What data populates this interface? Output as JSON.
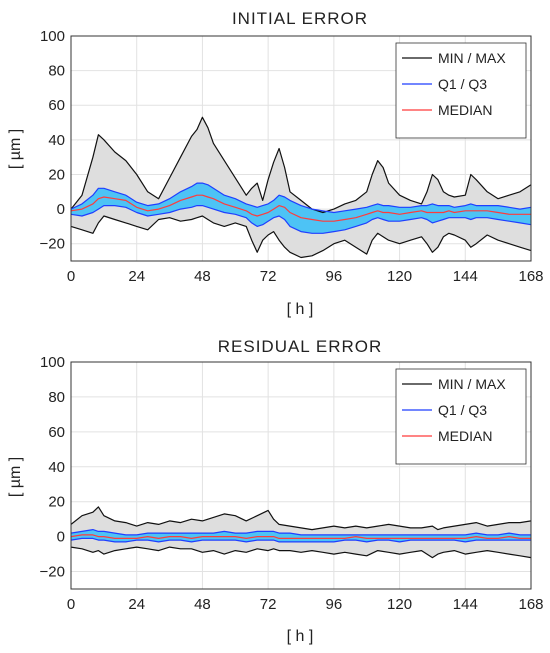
{
  "chart_data": [
    {
      "type": "area",
      "title": "INITIAL ERROR",
      "xlabel": "[ h ]",
      "ylabel": "[ µm ]",
      "xlim": [
        0,
        168
      ],
      "ylim": [
        -30,
        100
      ],
      "xticks": [
        0,
        24,
        48,
        72,
        96,
        120,
        144,
        168
      ],
      "yticks": [
        -20,
        0,
        20,
        40,
        60,
        80,
        100
      ],
      "xtick_labels": [
        "0",
        "24",
        "48",
        "72",
        "96",
        "120",
        "144",
        "168"
      ],
      "ytick_labels": [
        "−20",
        "0",
        "20",
        "40",
        "60",
        "80",
        "100"
      ],
      "grid": true,
      "legend_position": "top-right",
      "x": [
        0,
        4,
        8,
        10,
        12,
        16,
        20,
        24,
        28,
        32,
        36,
        40,
        44,
        46,
        48,
        50,
        52,
        56,
        60,
        64,
        66,
        68,
        70,
        72,
        74,
        76,
        78,
        80,
        84,
        88,
        92,
        96,
        100,
        104,
        108,
        110,
        112,
        114,
        116,
        120,
        124,
        128,
        130,
        132,
        134,
        136,
        138,
        140,
        144,
        146,
        148,
        152,
        156,
        160,
        164,
        168
      ],
      "series": [
        {
          "name": "MIN / MAX",
          "role": "max",
          "color": "#111111",
          "values": [
            0,
            8,
            30,
            43,
            40,
            33,
            28,
            20,
            10,
            6,
            18,
            30,
            42,
            46,
            53,
            47,
            38,
            28,
            18,
            8,
            12,
            15,
            5,
            17,
            27,
            35,
            24,
            10,
            5,
            0,
            -2,
            0,
            3,
            5,
            10,
            20,
            28,
            24,
            15,
            8,
            5,
            3,
            10,
            20,
            17,
            10,
            8,
            7,
            8,
            20,
            17,
            10,
            6,
            8,
            10,
            14
          ]
        },
        {
          "name": "",
          "role": "min",
          "color": "#111111",
          "values": [
            -10,
            -12,
            -14,
            -8,
            -4,
            -6,
            -8,
            -10,
            -12,
            -6,
            -5,
            -7,
            -6,
            -5,
            -4,
            -6,
            -8,
            -10,
            -8,
            -10,
            -18,
            -25,
            -18,
            -15,
            -13,
            -18,
            -22,
            -25,
            -28,
            -27,
            -24,
            -20,
            -18,
            -22,
            -26,
            -18,
            -14,
            -16,
            -18,
            -20,
            -18,
            -16,
            -20,
            -25,
            -22,
            -16,
            -14,
            -15,
            -18,
            -22,
            -20,
            -15,
            -18,
            -20,
            -22,
            -24
          ]
        },
        {
          "name": "Q1 / Q3",
          "role": "q3",
          "color": "#1f3fff",
          "values": [
            0,
            3,
            8,
            12,
            12,
            10,
            8,
            4,
            2,
            3,
            6,
            10,
            13,
            15,
            15,
            14,
            12,
            8,
            6,
            3,
            2,
            1,
            2,
            3,
            5,
            8,
            7,
            5,
            2,
            0,
            -1,
            -2,
            -1,
            0,
            1,
            2,
            3,
            2,
            2,
            1,
            1,
            2,
            2,
            3,
            2,
            2,
            2,
            1,
            2,
            3,
            2,
            2,
            2,
            1,
            0,
            1
          ]
        },
        {
          "name": "",
          "role": "q1",
          "color": "#1f3fff",
          "values": [
            -3,
            -4,
            -2,
            0,
            2,
            2,
            1,
            -2,
            -4,
            -3,
            -2,
            0,
            1,
            2,
            2,
            1,
            0,
            -2,
            -3,
            -5,
            -8,
            -10,
            -9,
            -7,
            -5,
            -4,
            -6,
            -10,
            -13,
            -14,
            -14,
            -13,
            -12,
            -10,
            -8,
            -6,
            -5,
            -6,
            -7,
            -7,
            -6,
            -5,
            -6,
            -8,
            -7,
            -6,
            -5,
            -5,
            -5,
            -6,
            -5,
            -5,
            -6,
            -7,
            -8,
            -9
          ]
        },
        {
          "name": "MEDIAN",
          "role": "median",
          "color": "#ff3b3b",
          "values": [
            -1,
            0,
            3,
            6,
            7,
            6,
            5,
            1,
            -1,
            0,
            2,
            5,
            7,
            8,
            8,
            7,
            6,
            3,
            1,
            -1,
            -3,
            -4,
            -3,
            -2,
            0,
            2,
            1,
            -2,
            -5,
            -6,
            -7,
            -7,
            -6,
            -5,
            -3,
            -2,
            -1,
            -2,
            -2,
            -3,
            -2,
            -1,
            -2,
            -2,
            -2,
            -2,
            -1,
            -2,
            -1,
            -1,
            -1,
            -1,
            -2,
            -3,
            -3,
            -3
          ]
        }
      ]
    },
    {
      "type": "area",
      "title": "RESIDUAL ERROR",
      "xlabel": "[ h ]",
      "ylabel": "[ µm ]",
      "xlim": [
        0,
        168
      ],
      "ylim": [
        -30,
        100
      ],
      "xticks": [
        0,
        24,
        48,
        72,
        96,
        120,
        144,
        168
      ],
      "yticks": [
        -20,
        0,
        20,
        40,
        60,
        80,
        100
      ],
      "xtick_labels": [
        "0",
        "24",
        "48",
        "72",
        "96",
        "120",
        "144",
        "168"
      ],
      "ytick_labels": [
        "−20",
        "0",
        "20",
        "40",
        "60",
        "80",
        "100"
      ],
      "grid": true,
      "legend_position": "top-right",
      "x": [
        0,
        4,
        8,
        10,
        12,
        16,
        20,
        24,
        28,
        32,
        36,
        40,
        44,
        48,
        52,
        56,
        60,
        64,
        68,
        72,
        74,
        76,
        80,
        84,
        88,
        92,
        96,
        100,
        104,
        108,
        112,
        116,
        120,
        124,
        128,
        132,
        134,
        136,
        140,
        144,
        148,
        152,
        156,
        160,
        164,
        168
      ],
      "series": [
        {
          "name": "MIN / MAX",
          "role": "max",
          "color": "#111111",
          "values": [
            7,
            12,
            14,
            17,
            12,
            9,
            8,
            6,
            8,
            7,
            9,
            8,
            10,
            9,
            11,
            13,
            12,
            9,
            12,
            15,
            10,
            7,
            6,
            5,
            4,
            5,
            6,
            5,
            6,
            5,
            6,
            7,
            6,
            5,
            5,
            6,
            4,
            5,
            6,
            7,
            8,
            6,
            7,
            8,
            8,
            9
          ]
        },
        {
          "name": "",
          "role": "min",
          "color": "#111111",
          "values": [
            -6,
            -7,
            -9,
            -8,
            -10,
            -8,
            -7,
            -6,
            -7,
            -8,
            -6,
            -7,
            -7,
            -9,
            -8,
            -10,
            -8,
            -9,
            -7,
            -8,
            -7,
            -8,
            -8,
            -9,
            -8,
            -9,
            -10,
            -9,
            -10,
            -11,
            -8,
            -9,
            -10,
            -9,
            -8,
            -12,
            -10,
            -9,
            -8,
            -10,
            -9,
            -8,
            -9,
            -10,
            -11,
            -12
          ]
        },
        {
          "name": "Q1 / Q3",
          "role": "q3",
          "color": "#1f3fff",
          "values": [
            2,
            3,
            4,
            3,
            3,
            2,
            1,
            1,
            2,
            2,
            2,
            2,
            2,
            2,
            2,
            3,
            2,
            2,
            3,
            3,
            3,
            2,
            2,
            1,
            1,
            1,
            1,
            1,
            1,
            1,
            1,
            1,
            1,
            1,
            1,
            1,
            1,
            1,
            1,
            1,
            2,
            1,
            1,
            2,
            1,
            1
          ]
        },
        {
          "name": "",
          "role": "q1",
          "color": "#1f3fff",
          "values": [
            -2,
            -1,
            -1,
            -2,
            -2,
            -3,
            -3,
            -2,
            -2,
            -3,
            -2,
            -2,
            -3,
            -2,
            -2,
            -2,
            -2,
            -3,
            -2,
            -2,
            -2,
            -3,
            -3,
            -3,
            -3,
            -3,
            -3,
            -2,
            -2,
            -3,
            -2,
            -2,
            -3,
            -2,
            -2,
            -2,
            -2,
            -2,
            -2,
            -3,
            -2,
            -2,
            -2,
            -2,
            -2,
            -2
          ]
        },
        {
          "name": "MEDIAN",
          "role": "median",
          "color": "#ff3b3b",
          "values": [
            0,
            1,
            1,
            0,
            0,
            -1,
            -1,
            -1,
            0,
            -1,
            0,
            0,
            -1,
            0,
            0,
            0,
            0,
            -1,
            0,
            0,
            0,
            -1,
            -1,
            -1,
            -1,
            -1,
            -1,
            -1,
            0,
            -1,
            -1,
            -1,
            -1,
            -1,
            -1,
            -1,
            -1,
            -1,
            -1,
            -1,
            0,
            -1,
            -1,
            0,
            -1,
            -1
          ]
        }
      ]
    }
  ]
}
